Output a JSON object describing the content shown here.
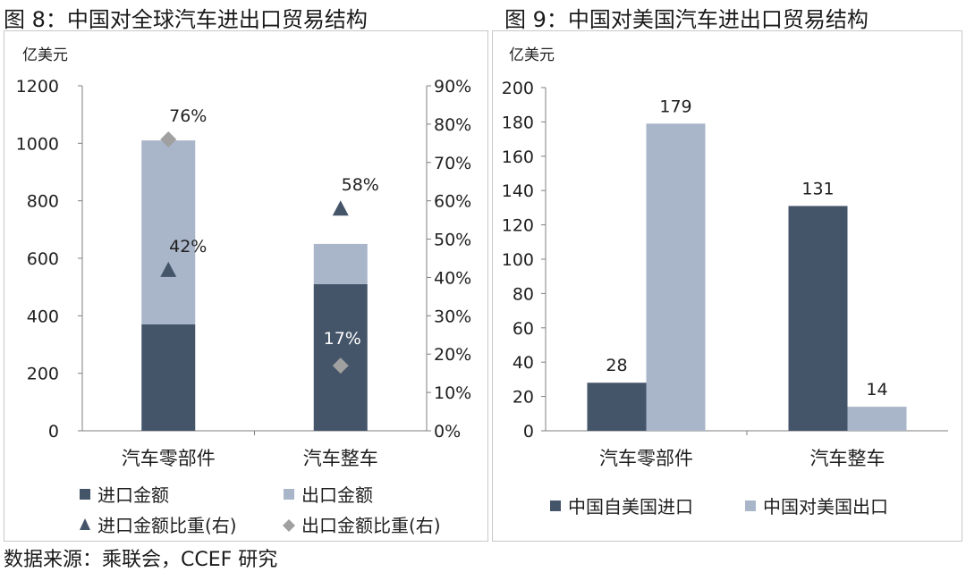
{
  "figures": {
    "left_title": "图 8：中国对全球汽车进出口贸易结构",
    "right_title": "图 9：中国对美国汽车进出口贸易结构"
  },
  "source": "数据来源：乘联会，CCEF 研究",
  "colors": {
    "dark": "#445469",
    "light": "#a9b5c8",
    "marker_diamond": "#a0a0a0",
    "axis": "#7f7f7f",
    "text": "#1f1f1f"
  },
  "chart_data": [
    {
      "type": "bar",
      "stacked": true,
      "unit_label": "亿美元",
      "categories": [
        "汽车零部件",
        "汽车整车"
      ],
      "ylim": [
        0,
        1200
      ],
      "yticks": [
        "0",
        "200",
        "400",
        "600",
        "800",
        "1000",
        "1200"
      ],
      "y2lim": [
        0,
        0.9
      ],
      "y2ticks": [
        "0%",
        "10%",
        "20%",
        "30%",
        "40%",
        "50%",
        "60%",
        "70%",
        "80%",
        "90%"
      ],
      "series": [
        {
          "name": "进口金额",
          "values": [
            370,
            510
          ],
          "color": "#445469"
        },
        {
          "name": "出口金额",
          "values": [
            640,
            140
          ],
          "color": "#a9b5c8"
        }
      ],
      "markers": [
        {
          "name": "进口金额比重(右)",
          "shape": "triangle",
          "values": [
            0.42,
            0.58
          ],
          "labels": [
            "42%",
            "58%"
          ],
          "color": "#445469"
        },
        {
          "name": "出口金额比重(右)",
          "shape": "diamond",
          "values": [
            0.76,
            0.17
          ],
          "labels": [
            "76%",
            "17%"
          ],
          "color": "#a0a0a0"
        }
      ],
      "legend": [
        "进口金额",
        "出口金额",
        "进口金额比重(右)",
        "出口金额比重(右)"
      ]
    },
    {
      "type": "bar",
      "stacked": false,
      "unit_label": "亿美元",
      "categories": [
        "汽车零部件",
        "汽车整车"
      ],
      "ylim": [
        0,
        200
      ],
      "yticks": [
        "0",
        "20",
        "40",
        "60",
        "80",
        "100",
        "120",
        "140",
        "160",
        "180",
        "200"
      ],
      "series": [
        {
          "name": "中国自美国进口",
          "values": [
            28,
            131
          ],
          "labels": [
            "28",
            "131"
          ],
          "color": "#445469"
        },
        {
          "name": "中国对美国出口",
          "values": [
            179,
            14
          ],
          "labels": [
            "179",
            "14"
          ],
          "color": "#a9b5c8"
        }
      ],
      "legend": [
        "中国自美国进口",
        "中国对美国出口"
      ]
    }
  ]
}
